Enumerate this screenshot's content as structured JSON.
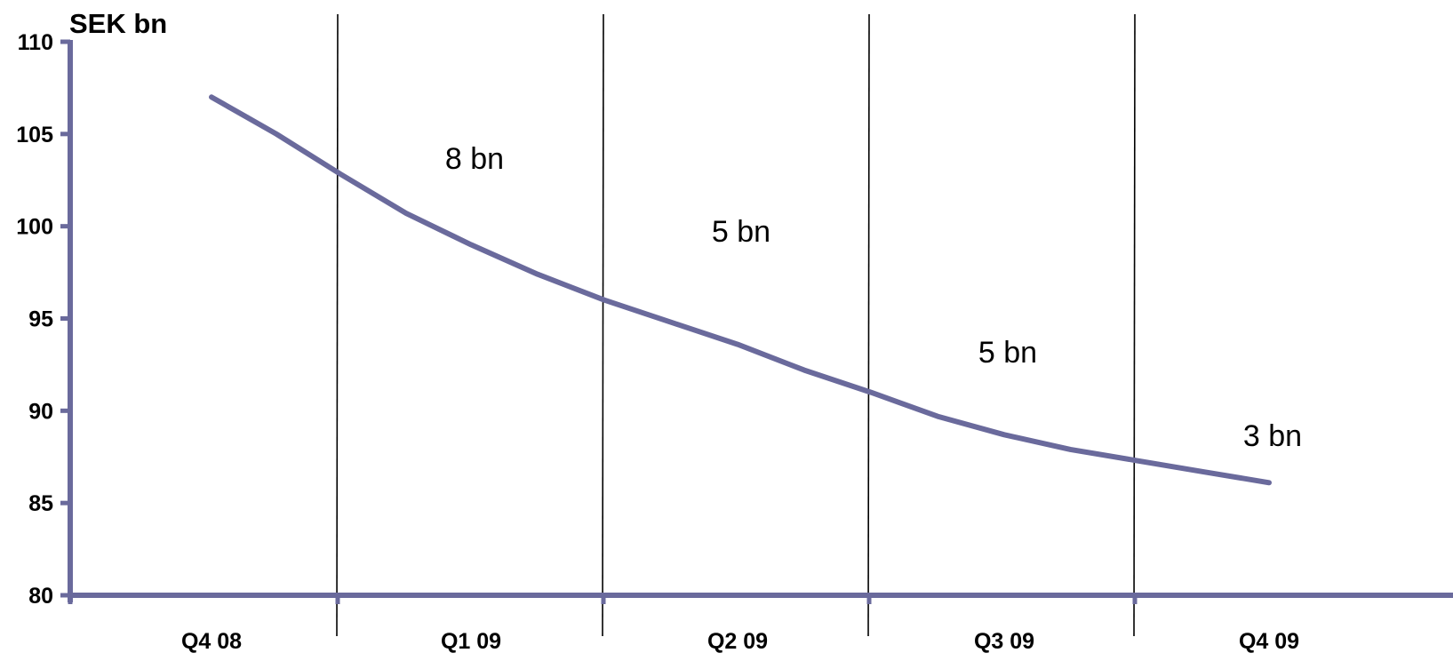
{
  "chart_data": {
    "type": "line",
    "ylabel": "SEK bn",
    "ylim": [
      80,
      110
    ],
    "yticks": [
      80,
      85,
      90,
      95,
      100,
      105,
      110
    ],
    "categories": [
      "Q4 08",
      "Q1 09",
      "Q2 09",
      "Q3 09",
      "Q4 09"
    ],
    "series": [
      {
        "x": [
          0.0,
          0.25,
          0.5,
          0.75,
          1.0,
          1.25,
          1.5,
          1.75,
          2.0,
          2.25,
          2.5,
          2.75,
          3.0,
          3.25,
          3.5,
          3.75,
          4.0
        ],
        "values": [
          107.0,
          105.0,
          102.8,
          100.7,
          99.0,
          97.4,
          96.0,
          94.8,
          93.6,
          92.2,
          91.0,
          89.7,
          88.7,
          87.9,
          87.3,
          86.7,
          86.1
        ]
      }
    ],
    "annotations": [
      {
        "text": "8 bn",
        "period": 1
      },
      {
        "text": "5 bn",
        "period": 2
      },
      {
        "text": "5 bn",
        "period": 3
      },
      {
        "text": "3 bn",
        "period": 4
      }
    ],
    "colors": {
      "series": "#6a6a9c",
      "axis": "#6a6a9c",
      "dividers": "#000000"
    },
    "grid": false,
    "legend": "none"
  }
}
